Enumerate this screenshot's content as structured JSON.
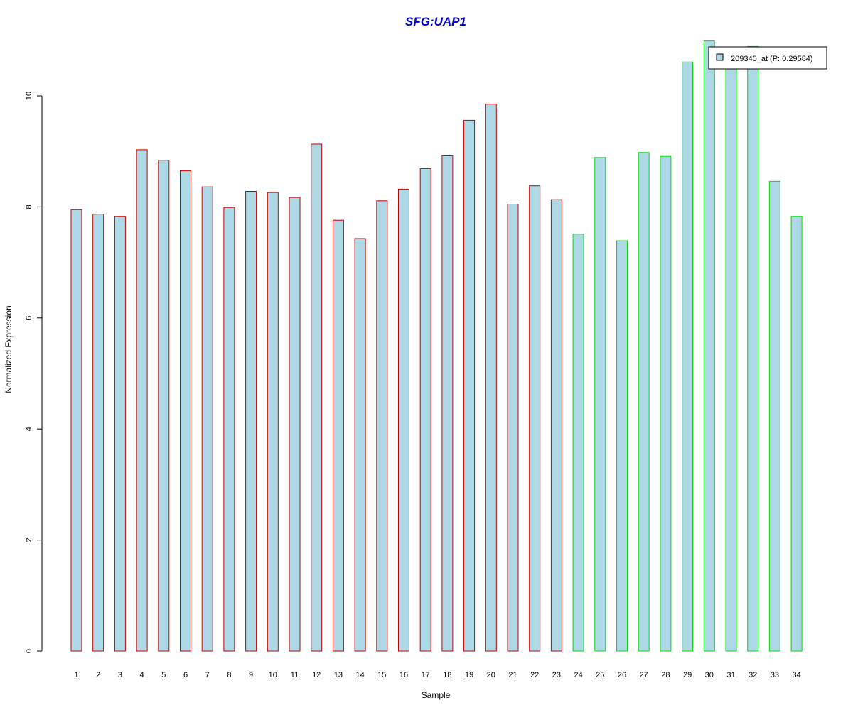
{
  "chart_data": {
    "type": "bar",
    "title": "SFG:UAP1",
    "xlabel": "Sample",
    "ylabel": "Normalized Expression",
    "categories": [
      "1",
      "2",
      "3",
      "4",
      "5",
      "6",
      "7",
      "8",
      "9",
      "10",
      "11",
      "12",
      "13",
      "14",
      "15",
      "16",
      "17",
      "18",
      "19",
      "20",
      "21",
      "22",
      "23",
      "24",
      "25",
      "26",
      "27",
      "28",
      "29",
      "30",
      "31",
      "32",
      "33",
      "34"
    ],
    "values": [
      7.95,
      7.87,
      7.83,
      9.03,
      8.84,
      8.65,
      8.36,
      7.99,
      8.28,
      8.26,
      8.17,
      9.13,
      7.76,
      7.43,
      8.11,
      8.32,
      8.69,
      8.92,
      9.56,
      9.85,
      8.05,
      8.38,
      8.13,
      7.51,
      8.89,
      7.39,
      8.98,
      8.91,
      10.61,
      10.99,
      10.55,
      10.89,
      8.46,
      7.83
    ],
    "groups": [
      "A",
      "A",
      "A",
      "A",
      "A",
      "A",
      "A",
      "A",
      "A",
      "A",
      "A",
      "A",
      "A",
      "A",
      "A",
      "A",
      "A",
      "A",
      "A",
      "A",
      "A",
      "A",
      "A",
      "B",
      "B",
      "B",
      "B",
      "B",
      "B",
      "B",
      "B",
      "B",
      "B",
      "B"
    ],
    "group_colors": {
      "A": "#cc0000",
      "B": "#00dd00"
    },
    "fill_color": "#add8e6",
    "ylim": [
      0,
      11.3
    ],
    "yticks": [
      0,
      2,
      4,
      6,
      8,
      10
    ],
    "grid": false,
    "legend": {
      "label": "209340_at (P: 0.29584)",
      "position": "top-right"
    }
  }
}
